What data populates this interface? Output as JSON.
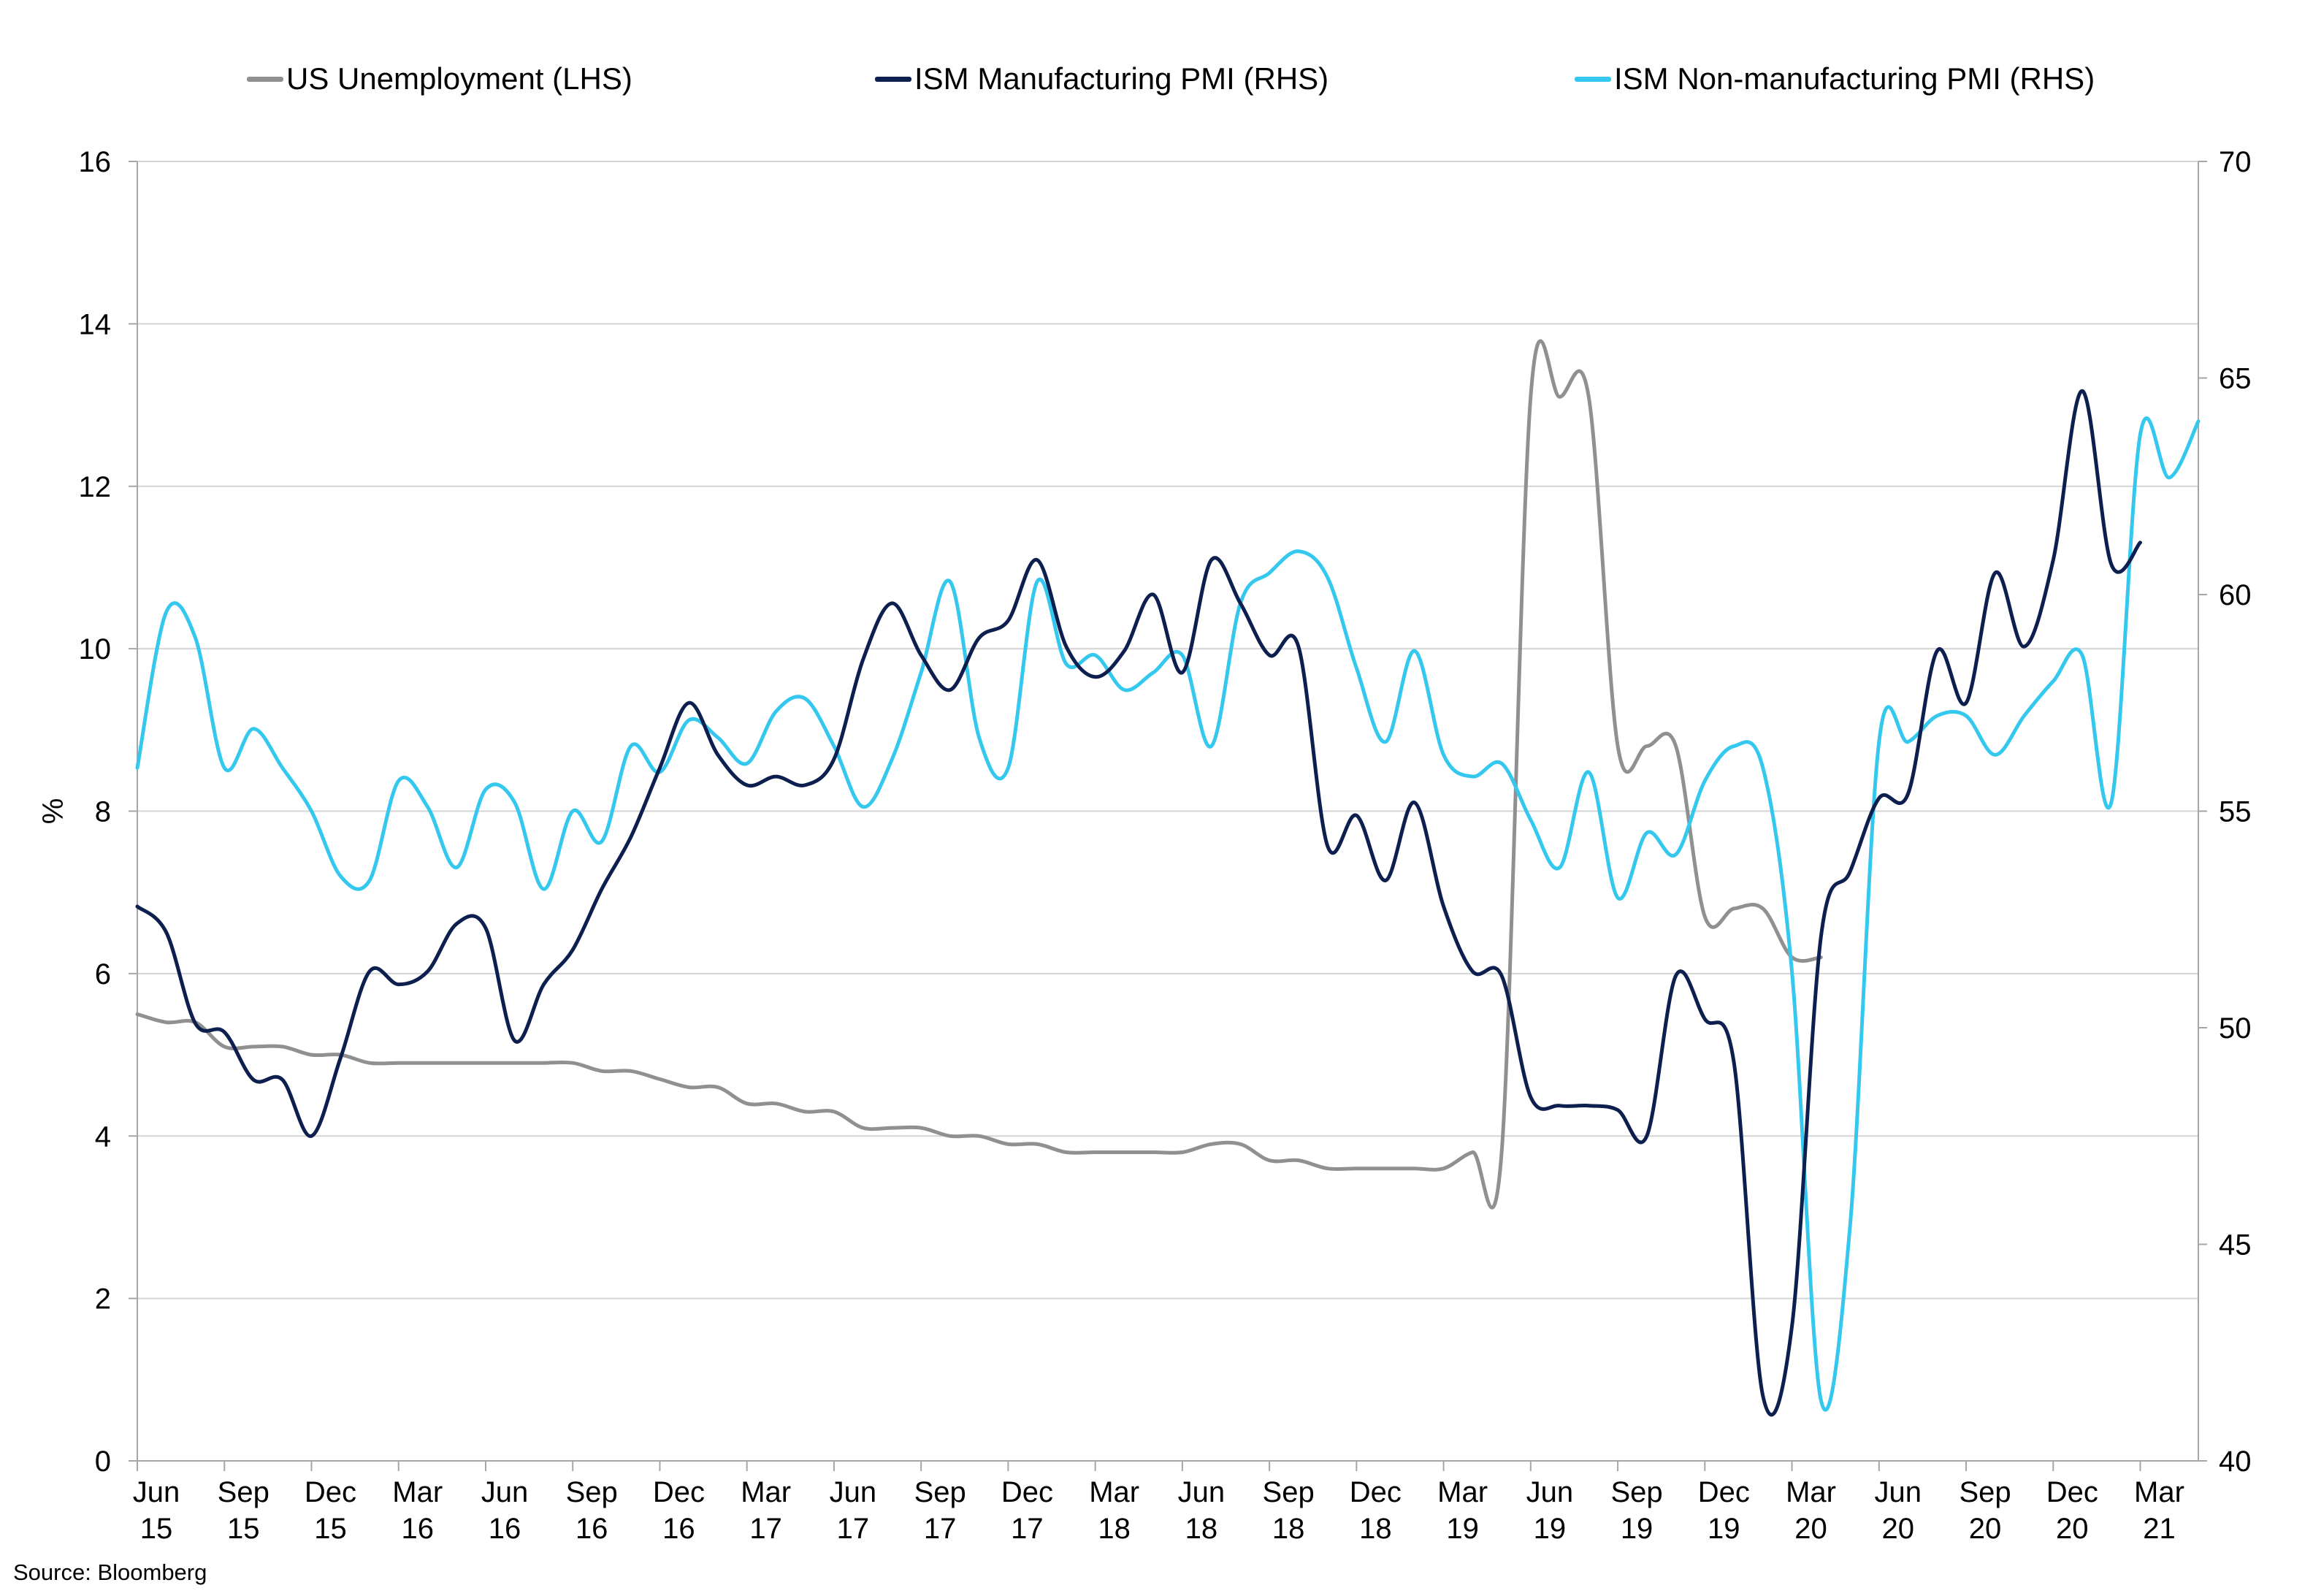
{
  "colors": {
    "unemployment": "#909090",
    "manufacturing": "#0d1f4f",
    "non_manufacturing": "#35c8ef",
    "grid": "#d4d4d4",
    "axis": "#a6a6a6"
  },
  "source": "Source:  Bloomberg",
  "chart_data": {
    "type": "line",
    "ylabel_left": "%",
    "ylim_left": [
      0,
      16
    ],
    "yticks_left": [
      "0",
      "2",
      "4",
      "6",
      "8",
      "10",
      "12",
      "14",
      "16"
    ],
    "ylim_right": [
      40,
      70
    ],
    "yticks_right": [
      "40",
      "45",
      "50",
      "55",
      "60",
      "65",
      "70"
    ],
    "grid": true,
    "legend_position": "top",
    "x": [
      "2015-06",
      "2015-07",
      "2015-08",
      "2015-09",
      "2015-10",
      "2015-11",
      "2015-12",
      "2016-01",
      "2016-02",
      "2016-03",
      "2016-04",
      "2016-05",
      "2016-06",
      "2016-07",
      "2016-08",
      "2016-09",
      "2016-10",
      "2016-11",
      "2016-12",
      "2017-01",
      "2017-02",
      "2017-03",
      "2017-04",
      "2017-05",
      "2017-06",
      "2017-07",
      "2017-08",
      "2017-09",
      "2017-10",
      "2017-11",
      "2017-12",
      "2018-01",
      "2018-02",
      "2018-03",
      "2018-04",
      "2018-05",
      "2018-06",
      "2018-07",
      "2018-08",
      "2018-09",
      "2018-10",
      "2018-11",
      "2018-12",
      "2019-01",
      "2019-02",
      "2019-03",
      "2019-04",
      "2019-05",
      "2019-06",
      "2019-07",
      "2019-08",
      "2019-09",
      "2019-10",
      "2019-11",
      "2019-12",
      "2020-01",
      "2020-02",
      "2020-03",
      "2020-04",
      "2020-05",
      "2020-06",
      "2020-07",
      "2020-08",
      "2020-09",
      "2020-10",
      "2020-11",
      "2020-12",
      "2021-01",
      "2021-02",
      "2021-03",
      "2021-04",
      "2021-05"
    ],
    "x_tick_labels": [
      {
        "month": "Jun",
        "year": "15",
        "x": "2015-06"
      },
      {
        "month": "Sep",
        "year": "15",
        "x": "2015-09"
      },
      {
        "month": "Dec",
        "year": "15",
        "x": "2015-12"
      },
      {
        "month": "Mar",
        "year": "16",
        "x": "2016-03"
      },
      {
        "month": "Jun",
        "year": "16",
        "x": "2016-06"
      },
      {
        "month": "Sep",
        "year": "16",
        "x": "2016-09"
      },
      {
        "month": "Dec",
        "year": "16",
        "x": "2016-12"
      },
      {
        "month": "Mar",
        "year": "17",
        "x": "2017-03"
      },
      {
        "month": "Jun",
        "year": "17",
        "x": "2017-06"
      },
      {
        "month": "Sep",
        "year": "17",
        "x": "2017-09"
      },
      {
        "month": "Dec",
        "year": "17",
        "x": "2017-12"
      },
      {
        "month": "Mar",
        "year": "18",
        "x": "2018-03"
      },
      {
        "month": "Jun",
        "year": "18",
        "x": "2018-06"
      },
      {
        "month": "Sep",
        "year": "18",
        "x": "2018-09"
      },
      {
        "month": "Dec",
        "year": "18",
        "x": "2018-12"
      },
      {
        "month": "Mar",
        "year": "19",
        "x": "2019-03"
      },
      {
        "month": "Jun",
        "year": "19",
        "x": "2019-06"
      },
      {
        "month": "Sep",
        "year": "19",
        "x": "2019-09"
      },
      {
        "month": "Dec",
        "year": "19",
        "x": "2019-12"
      },
      {
        "month": "Mar",
        "year": "20",
        "x": "2020-03"
      },
      {
        "month": "Jun",
        "year": "20",
        "x": "2020-06"
      },
      {
        "month": "Sep",
        "year": "20",
        "x": "2020-09"
      },
      {
        "month": "Dec",
        "year": "20",
        "x": "2020-12"
      },
      {
        "month": "Mar",
        "year": "21",
        "x": "2021-03"
      }
    ],
    "series": [
      {
        "name": "US Unemployment (LHS)",
        "axis": "left",
        "values": [
          5.5,
          5.4,
          5.4,
          5.1,
          5.1,
          5.1,
          5.0,
          5.0,
          4.9,
          4.9,
          4.9,
          4.9,
          4.9,
          4.9,
          4.9,
          4.9,
          4.8,
          4.8,
          4.7,
          4.6,
          4.6,
          4.4,
          4.4,
          4.3,
          4.3,
          4.1,
          4.1,
          4.1,
          4.0,
          4.0,
          3.9,
          3.9,
          3.8,
          3.8,
          3.8,
          3.8,
          3.8,
          3.9,
          3.9,
          3.7,
          3.7,
          3.6,
          3.6,
          3.6,
          3.6,
          3.6,
          3.8,
          3.8,
          13.1,
          13.1,
          13.1,
          8.8,
          8.8,
          8.8,
          6.7,
          6.8,
          6.8,
          6.2,
          6.2,
          null,
          null,
          null,
          null,
          null,
          null,
          null,
          null,
          null,
          null,
          null,
          null,
          null
        ]
      },
      {
        "name": "ISM Manufacturing PMI (RHS)",
        "axis": "right",
        "values": [
          52.8,
          52.2,
          50.1,
          49.9,
          48.8,
          48.8,
          47.5,
          49.3,
          51.3,
          51.0,
          51.3,
          52.4,
          52.3,
          49.7,
          51.0,
          51.8,
          53.2,
          54.4,
          56.0,
          57.5,
          56.3,
          55.6,
          55.8,
          55.6,
          56.2,
          58.5,
          59.8,
          58.6,
          57.8,
          59.0,
          59.4,
          60.8,
          58.8,
          58.1,
          58.7,
          60.0,
          58.2,
          60.8,
          59.8,
          58.6,
          58.8,
          54.2,
          54.9,
          53.4,
          55.2,
          52.8,
          51.3,
          51.2,
          48.4,
          48.2,
          48.2,
          48.1,
          47.5,
          51.2,
          50.2,
          49.2,
          41.5,
          43.1,
          52.1,
          53.6,
          55.3,
          55.4,
          58.7,
          57.5,
          60.5,
          58.8,
          60.8,
          64.7,
          60.7,
          61.2,
          null,
          null
        ]
      },
      {
        "name": "ISM Non-manufacturing PMI (RHS)",
        "axis": "right",
        "values": [
          56.0,
          59.6,
          59.0,
          56.0,
          56.9,
          56.0,
          55.0,
          53.5,
          53.4,
          55.7,
          55.1,
          53.7,
          55.5,
          55.2,
          53.2,
          55.0,
          54.3,
          56.5,
          55.9,
          57.1,
          56.7,
          56.1,
          57.3,
          57.6,
          56.5,
          55.1,
          56.2,
          58.2,
          60.3,
          56.7,
          56.0,
          60.3,
          58.4,
          58.6,
          57.8,
          58.2,
          58.6,
          56.5,
          59.8,
          60.5,
          61.0,
          60.4,
          58.3,
          56.6,
          58.7,
          56.3,
          55.8,
          56.1,
          54.8,
          53.7,
          55.9,
          53.0,
          54.5,
          54.0,
          55.7,
          56.5,
          56.0,
          51.3,
          41.4,
          45.4,
          56.6,
          56.6,
          57.2,
          57.2,
          56.3,
          57.2,
          58.0,
          58.6,
          55.2,
          63.7,
          62.7,
          64.0
        ]
      }
    ]
  }
}
